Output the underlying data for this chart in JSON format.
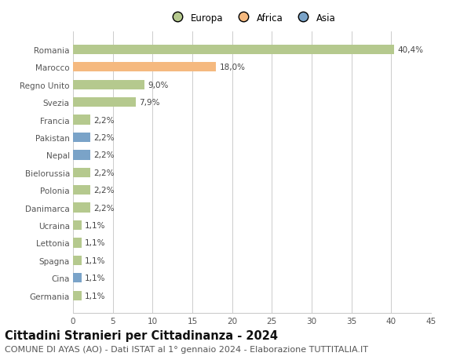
{
  "categories": [
    "Germania",
    "Cina",
    "Spagna",
    "Lettonia",
    "Ucraina",
    "Danimarca",
    "Polonia",
    "Bielorussia",
    "Nepal",
    "Pakistan",
    "Francia",
    "Svezia",
    "Regno Unito",
    "Marocco",
    "Romania"
  ],
  "values": [
    1.1,
    1.1,
    1.1,
    1.1,
    1.1,
    2.2,
    2.2,
    2.2,
    2.2,
    2.2,
    2.2,
    7.9,
    9.0,
    18.0,
    40.4
  ],
  "labels": [
    "1,1%",
    "1,1%",
    "1,1%",
    "1,1%",
    "1,1%",
    "2,2%",
    "2,2%",
    "2,2%",
    "2,2%",
    "2,2%",
    "2,2%",
    "7,9%",
    "9,0%",
    "18,0%",
    "40,4%"
  ],
  "continents": [
    "Europa",
    "Asia",
    "Europa",
    "Europa",
    "Europa",
    "Europa",
    "Europa",
    "Europa",
    "Asia",
    "Asia",
    "Europa",
    "Europa",
    "Europa",
    "Africa",
    "Europa"
  ],
  "colors": {
    "Europa": "#b5c98e",
    "Africa": "#f5b97f",
    "Asia": "#7aa3c8"
  },
  "xlim": [
    0,
    45
  ],
  "xticks": [
    0,
    5,
    10,
    15,
    20,
    25,
    30,
    35,
    40,
    45
  ],
  "title": "Cittadini Stranieri per Cittadinanza - 2024",
  "subtitle": "COMUNE DI AYAS (AO) - Dati ISTAT al 1° gennaio 2024 - Elaborazione TUTTITALIA.IT",
  "title_fontsize": 10.5,
  "subtitle_fontsize": 8,
  "background_color": "#ffffff",
  "grid_color": "#cccccc",
  "bar_height": 0.55,
  "label_fontsize": 7.5,
  "tick_fontsize": 7.5,
  "legend_fontsize": 8.5
}
